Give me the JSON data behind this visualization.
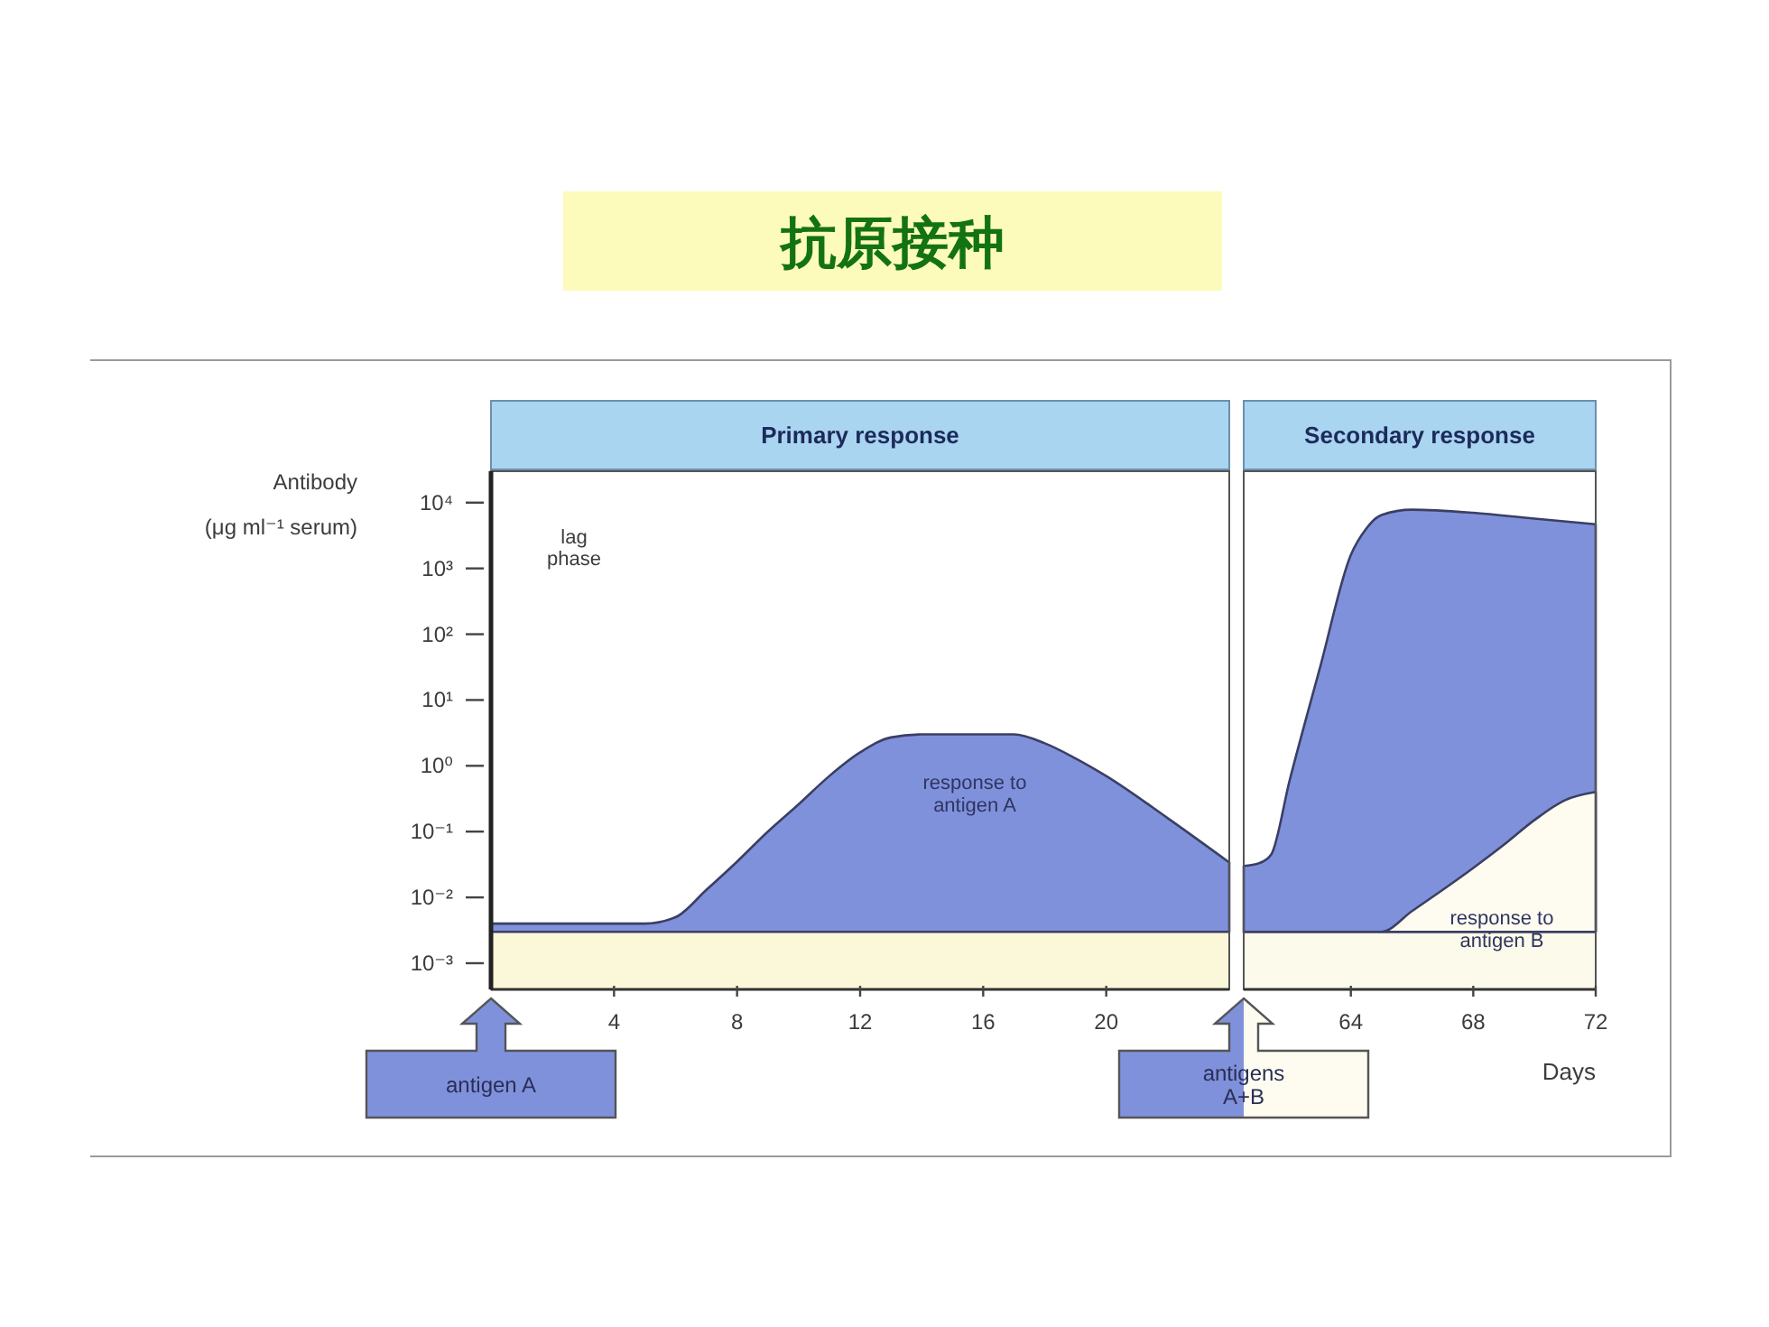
{
  "chart_data": [
    {
      "type": "area",
      "title": "抗原接种",
      "subtitle": "Primary response",
      "ylabel": "Antibody\n(μg ml⁻¹ serum)",
      "series": [
        {
          "name": "response to antigen A",
          "color": "#8091dc",
          "x": [
            0,
            5,
            6,
            7,
            8,
            9,
            10,
            11,
            12,
            13,
            14,
            17,
            18,
            19,
            20,
            22,
            24
          ],
          "values": [
            0.004,
            0.004,
            0.005,
            0.013,
            0.035,
            0.1,
            0.26,
            0.7,
            1.6,
            2.7,
            3,
            3,
            2.2,
            1.3,
            0.7,
            0.16,
            0.034
          ]
        }
      ],
      "xlim": [
        0,
        24
      ],
      "xticks": [
        4,
        8,
        12,
        16,
        20
      ],
      "ylim": [
        0.0004,
        30000
      ],
      "yticks": [
        {
          "value": 10000,
          "label": "10⁴"
        },
        {
          "value": 1000,
          "label": "10³"
        },
        {
          "value": 100,
          "label": "10²"
        },
        {
          "value": 10,
          "label": "10¹"
        },
        {
          "value": 1,
          "label": "10⁰"
        },
        {
          "value": 0.1,
          "label": "10⁻¹"
        },
        {
          "value": 0.01,
          "label": "10⁻²"
        },
        {
          "value": 0.001,
          "label": "10⁻³"
        }
      ],
      "log": true,
      "bands": [
        {
          "axis": "y",
          "from": 0.0004,
          "to": 0.003,
          "color": "#fbf8d9"
        }
      ],
      "annotations": [
        "lag\nphase",
        "antigen A"
      ]
    },
    {
      "type": "area",
      "subtitle": "Secondary response",
      "xlabel": "Days",
      "series": [
        {
          "color": "#8091dc",
          "x": [
            60.5,
            61,
            61.4,
            62,
            63,
            64,
            64.5,
            65,
            66,
            68,
            70,
            72
          ],
          "values": [
            0.03,
            0.033,
            0.045,
            0.6,
            32,
            1600,
            4000,
            6500,
            7800,
            7000,
            5700,
            4700
          ]
        },
        {
          "name": "response to antigen B",
          "color": "#fefcf0",
          "x": [
            60.5,
            65,
            66,
            67,
            68,
            69,
            70,
            71,
            72
          ],
          "values": [
            0.003,
            0.003,
            0.0062,
            0.013,
            0.028,
            0.063,
            0.15,
            0.3,
            0.4
          ]
        }
      ],
      "xlim": [
        60.5,
        72
      ],
      "xticks": [
        64,
        68,
        72
      ],
      "ylim": [
        0.0004,
        30000
      ],
      "log": true,
      "tick_labels": "x",
      "bands": [
        {
          "axis": "y",
          "from": 0.0004,
          "to": 0.003,
          "color": "#fcfaea"
        }
      ],
      "annotations": [
        "antigens\nA+B"
      ]
    }
  ]
}
